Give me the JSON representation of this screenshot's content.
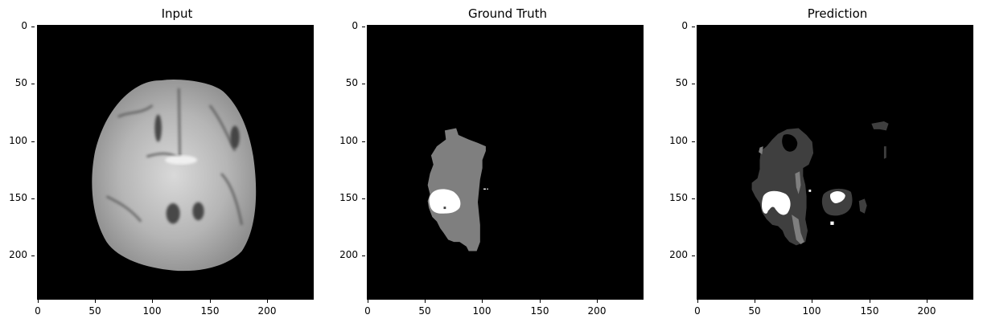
{
  "panels": [
    {
      "title": "Input"
    },
    {
      "title": "Ground Truth"
    },
    {
      "title": "Prediction"
    }
  ],
  "image_size": [
    240,
    240
  ],
  "y_ticks": [
    "0",
    "50",
    "100",
    "150",
    "200"
  ],
  "x_ticks": [
    "0",
    "50",
    "100",
    "150",
    "200"
  ],
  "colormap": "gray",
  "colors": {
    "background": "#000000",
    "edema": "#7f7f7f",
    "core": "#3f3f3f",
    "enhancing": "#ffffff"
  }
}
